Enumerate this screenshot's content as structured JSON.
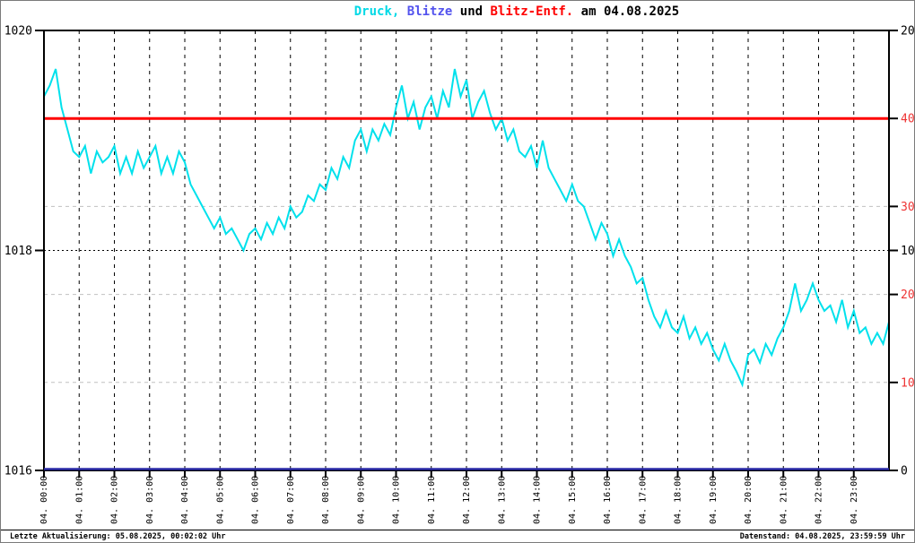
{
  "title": {
    "segments": [
      {
        "text": "Druck,",
        "color": "#00D9E6"
      },
      {
        "text": " Blitze",
        "color": "#5353EE"
      },
      {
        "text": " und ",
        "color": "#000000"
      },
      {
        "text": "Blitz-Entf.",
        "color": "#FF0000"
      },
      {
        "text": " am 04.08.2025",
        "color": "#000000"
      }
    ]
  },
  "footer": {
    "left": "Letzte Aktualisierung: 05.08.2025, 00:02:02 Uhr",
    "right": "Datenstand: 04.08.2025, 23:59:59 Uhr"
  },
  "chart_data": {
    "type": "line",
    "title": "Druck, Blitze und Blitz-Entf. am 04.08.2025",
    "x_axis": {
      "unit": "time of day on 04.08.2025",
      "start_minute": 0,
      "end_minute": 1440,
      "hour_tick_labels": [
        "04. 00:00",
        "04. 01:00",
        "04. 02:00",
        "04. 03:00",
        "04. 04:00",
        "04. 05:00",
        "04. 06:00",
        "04. 07:00",
        "04. 08:00",
        "04. 09:00",
        "04. 10:00",
        "04. 11:00",
        "04. 12:00",
        "04. 13:00",
        "04. 14:00",
        "04. 15:00",
        "04. 16:00",
        "04. 17:00",
        "04. 18:00",
        "04. 19:00",
        "04. 20:00",
        "04. 21:00",
        "04. 22:00",
        "04. 23:00"
      ]
    },
    "y_axis_left": {
      "series": "Druck",
      "min": 1016,
      "max": 1020,
      "ticks": [
        1016,
        1018,
        1020
      ],
      "label_color": "#000000"
    },
    "y_axis_right_black": {
      "series": "Blitze",
      "min": 0,
      "max": 20,
      "ticks": [
        0,
        10,
        20
      ],
      "label_color": "#000000"
    },
    "y_axis_right_red": {
      "series": "Blitz-Entf.",
      "min": 0,
      "max": 50,
      "ticks": [
        10,
        20,
        30,
        40
      ],
      "label_color": "#EE3333"
    },
    "grid": {
      "vertical_dashed_each_hour": true,
      "horizontal_black_dotted_at_left_value": 1018,
      "horizontal_gray_dashed_at_red_values": [
        10,
        20,
        30
      ],
      "gray_color": "#c0c0c0"
    },
    "series": [
      {
        "name": "Druck",
        "color": "#00E1EC",
        "axis": "left",
        "sample_step_minutes": 10,
        "values": [
          1019.4,
          1019.5,
          1019.65,
          1019.3,
          1019.1,
          1018.9,
          1018.85,
          1018.95,
          1018.7,
          1018.9,
          1018.8,
          1018.85,
          1018.95,
          1018.7,
          1018.85,
          1018.7,
          1018.9,
          1018.75,
          1018.85,
          1018.95,
          1018.7,
          1018.85,
          1018.7,
          1018.9,
          1018.8,
          1018.6,
          1018.5,
          1018.4,
          1018.3,
          1018.2,
          1018.3,
          1018.15,
          1018.2,
          1018.1,
          1018.0,
          1018.15,
          1018.2,
          1018.1,
          1018.25,
          1018.15,
          1018.3,
          1018.2,
          1018.4,
          1018.3,
          1018.35,
          1018.5,
          1018.45,
          1018.6,
          1018.55,
          1018.75,
          1018.65,
          1018.85,
          1018.75,
          1019.0,
          1019.1,
          1018.9,
          1019.1,
          1019.0,
          1019.15,
          1019.05,
          1019.3,
          1019.5,
          1019.2,
          1019.35,
          1019.1,
          1019.3,
          1019.4,
          1019.2,
          1019.45,
          1019.3,
          1019.65,
          1019.4,
          1019.55,
          1019.2,
          1019.35,
          1019.45,
          1019.25,
          1019.1,
          1019.2,
          1019.0,
          1019.1,
          1018.9,
          1018.85,
          1018.95,
          1018.75,
          1019.0,
          1018.75,
          1018.65,
          1018.55,
          1018.45,
          1018.6,
          1018.45,
          1018.4,
          1018.25,
          1018.1,
          1018.25,
          1018.15,
          1017.95,
          1018.1,
          1017.95,
          1017.85,
          1017.7,
          1017.75,
          1017.55,
          1017.4,
          1017.3,
          1017.45,
          1017.3,
          1017.25,
          1017.4,
          1017.2,
          1017.3,
          1017.15,
          1017.25,
          1017.1,
          1017.0,
          1017.15,
          1017.0,
          1016.9,
          1016.78,
          1017.05,
          1017.1,
          1016.98,
          1017.15,
          1017.05,
          1017.2,
          1017.3,
          1017.45,
          1017.7,
          1017.45,
          1017.55,
          1017.7,
          1017.55,
          1017.45,
          1017.5,
          1017.35,
          1017.55,
          1017.3,
          1017.45,
          1017.25,
          1017.3,
          1017.15,
          1017.25,
          1017.15,
          1017.35
        ]
      },
      {
        "name": "Blitze",
        "color": "#2B2BA8",
        "axis": "right_black",
        "constant_value": 0
      },
      {
        "name": "Blitz-Entf.",
        "color": "#FF0000",
        "axis": "right_red",
        "constant_value": 40
      }
    ]
  }
}
